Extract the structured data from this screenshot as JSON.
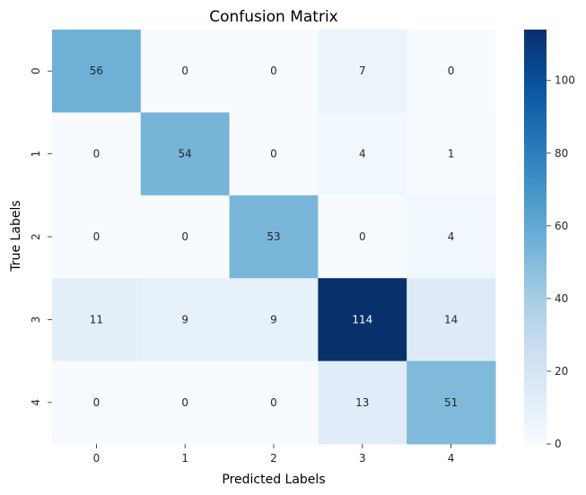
{
  "chart_data": {
    "type": "heatmap",
    "title": "Confusion Matrix",
    "xlabel": "Predicted Labels",
    "ylabel": "True Labels",
    "x_categories": [
      "0",
      "1",
      "2",
      "3",
      "4"
    ],
    "y_categories": [
      "0",
      "1",
      "2",
      "3",
      "4"
    ],
    "values": [
      [
        56,
        0,
        0,
        7,
        0
      ],
      [
        0,
        54,
        0,
        4,
        1
      ],
      [
        0,
        0,
        53,
        0,
        4
      ],
      [
        11,
        9,
        9,
        114,
        14
      ],
      [
        0,
        0,
        0,
        13,
        51
      ]
    ],
    "colormap": "Blues",
    "color_range": [
      0,
      114
    ],
    "colorbar_ticks": [
      "0",
      "20",
      "40",
      "60",
      "80",
      "100"
    ],
    "colorbar_tick_values": [
      0,
      20,
      40,
      60,
      80,
      100
    ],
    "annotations": true,
    "grid": false
  }
}
